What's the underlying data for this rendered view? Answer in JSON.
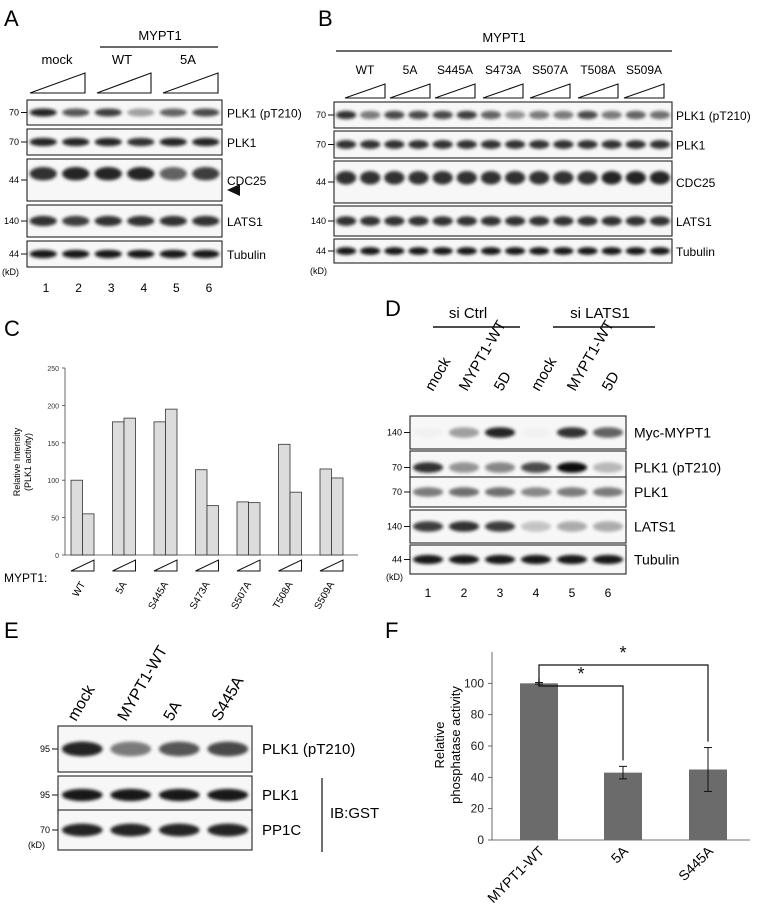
{
  "panels": {
    "A": {
      "letter": "A",
      "group": "MYPT1",
      "columns": [
        "mock",
        "WT",
        "5A"
      ],
      "blots": [
        "PLK1 (pT210)",
        "PLK1",
        "CDC25",
        "LATS1",
        "Tubulin"
      ],
      "markers": [
        "70",
        "70",
        "44",
        "140",
        "44"
      ],
      "unit": "(kD)",
      "lanes": [
        "1",
        "2",
        "3",
        "4",
        "5",
        "6"
      ]
    },
    "B": {
      "letter": "B",
      "group": "MYPT1",
      "columns": [
        "WT",
        "5A",
        "S445A",
        "S473A",
        "S507A",
        "T508A",
        "S509A"
      ],
      "blots": [
        "PLK1 (pT210)",
        "PLK1",
        "CDC25",
        "LATS1",
        "Tubulin"
      ],
      "markers": [
        "70",
        "70",
        "44",
        "140",
        "44"
      ],
      "unit": "(kD)"
    },
    "D": {
      "letter": "D",
      "groups": [
        "si Ctrl",
        "si LATS1"
      ],
      "columns": [
        "mock",
        "MYPT1-WT",
        "5D",
        "mock",
        "MYPT1-WT",
        "5D"
      ],
      "blots": [
        "Myc-MYPT1",
        "PLK1 (pT210)",
        "PLK1",
        "LATS1",
        "Tubulin"
      ],
      "markers": [
        "140",
        "70",
        "70",
        "140",
        "44"
      ],
      "unit": "(kD)",
      "lanes": [
        "1",
        "2",
        "3",
        "4",
        "5",
        "6"
      ]
    },
    "E": {
      "letter": "E",
      "columns": [
        "mock",
        "MYPT1-WT",
        "5A",
        "S445A"
      ],
      "blots": [
        "PLK1 (pT210)",
        "PLK1",
        "PP1C"
      ],
      "markers": [
        "95",
        "95",
        "70"
      ],
      "unit": "(kD)",
      "ib_label": "IB:GST"
    }
  },
  "chart_data": [
    {
      "panel": "C",
      "type": "bar",
      "ylabel_lines": [
        "Relative Intensity",
        "(PLK1 activity)"
      ],
      "ylim": [
        0,
        250
      ],
      "yticks": [
        "0",
        "50",
        "100",
        "150",
        "200",
        "250"
      ],
      "x_prefix": "MYPT1:",
      "categories": [
        "WT",
        "5A",
        "S445A",
        "S473A",
        "S507A",
        "T508A",
        "S509A"
      ],
      "values": [
        [
          100,
          55
        ],
        [
          178,
          183
        ],
        [
          178,
          195
        ],
        [
          114,
          66
        ],
        [
          71,
          70
        ],
        [
          148,
          84
        ],
        [
          115,
          103
        ]
      ],
      "bar_color": "#dcdcdc",
      "grid": false
    },
    {
      "panel": "F",
      "type": "bar",
      "ylabel_lines": [
        "Relative",
        "phosphatase activity"
      ],
      "ylim": [
        0,
        120
      ],
      "yticks": [
        "0",
        "20",
        "40",
        "60",
        "80",
        "100"
      ],
      "categories": [
        "MYPT1-WT",
        "5A",
        "S445A"
      ],
      "values": [
        100,
        43,
        45
      ],
      "errors": [
        0.5,
        4,
        14
      ],
      "significance": "*",
      "bar_color": "#6b6b6b",
      "grid": false
    }
  ]
}
